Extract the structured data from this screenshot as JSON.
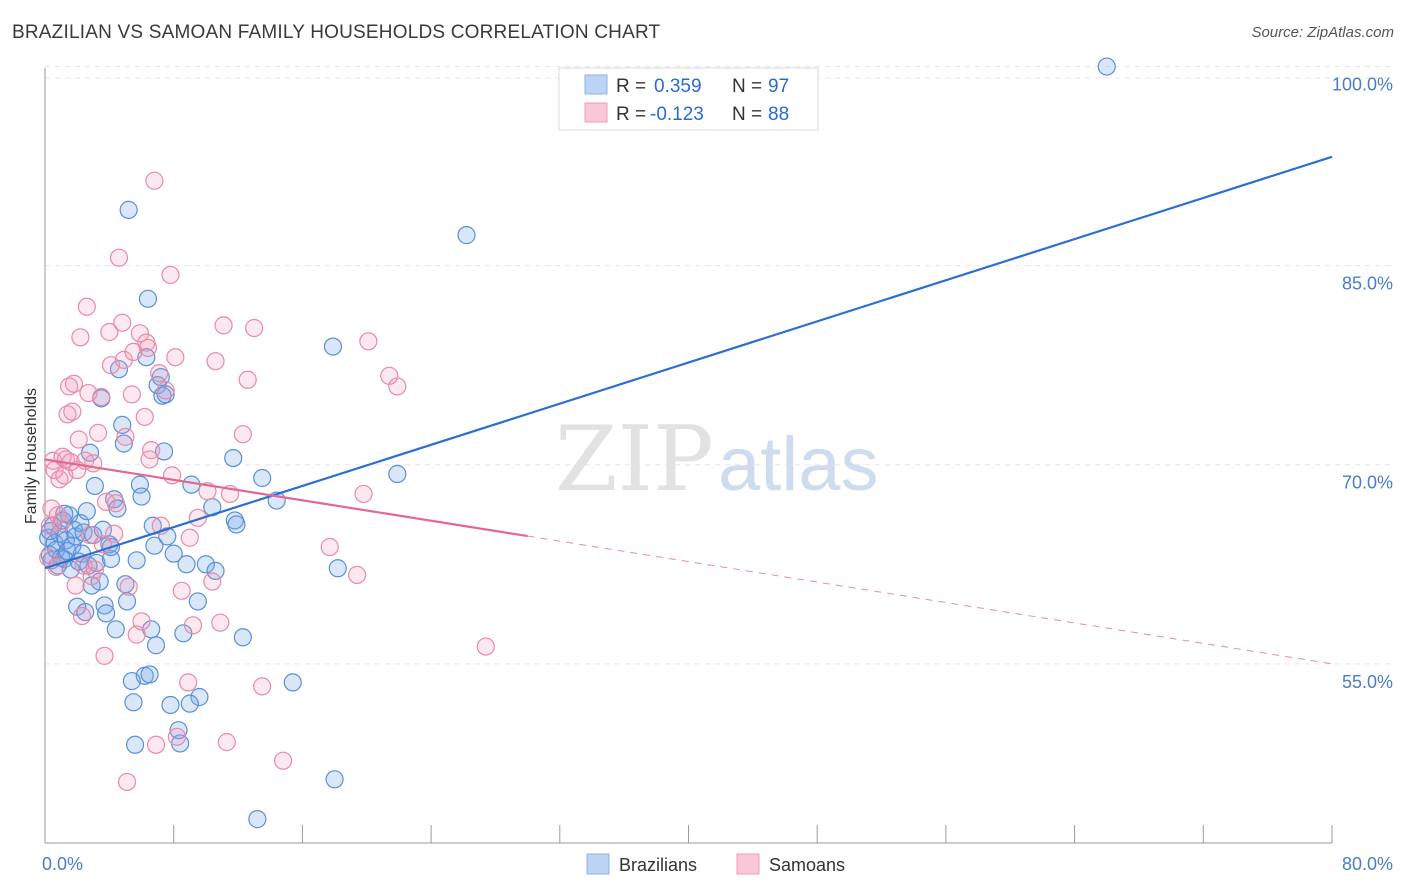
{
  "header": {
    "title": "BRAZILIAN VS SAMOAN FAMILY HOUSEHOLDS CORRELATION CHART",
    "source": "Source: ZipAtlas.com"
  },
  "watermark": {
    "zip": "ZIP",
    "atlas": "atlas"
  },
  "legend": {
    "r_label": "R =",
    "n_label": "N =",
    "series": [
      {
        "r": "0.359",
        "n": "97",
        "color": "#4a85d6"
      },
      {
        "r": "-0.123",
        "n": "88",
        "color": "#e8779a"
      }
    ]
  },
  "bottom_legend": [
    "Brazilians",
    "Samoans"
  ],
  "chart_data": {
    "type": "scatter",
    "title": "BRAZILIAN VS SAMOAN FAMILY HOUSEHOLDS CORRELATION CHART",
    "xlabel": "",
    "ylabel": "Family Households",
    "xlim": [
      0,
      80
    ],
    "ylim": [
      41.5,
      102
    ],
    "x_tick_labels": [
      "0.0%",
      "80.0%"
    ],
    "y_ticks": [
      55,
      70,
      85,
      100
    ],
    "y_tick_labels": [
      "55.0%",
      "70.0%",
      "85.0%",
      "100.0%"
    ],
    "grid": true,
    "series": [
      {
        "name": "Brazilians",
        "color": "#4a85d6",
        "r": 0.359,
        "n": 97,
        "trend": {
          "x": [
            0,
            80
          ],
          "y": [
            62.2,
            93.2
          ],
          "dashed_from": null
        },
        "points": [
          [
            0.2,
            64.5
          ],
          [
            0.3,
            63.2
          ],
          [
            0.4,
            62.8
          ],
          [
            0.5,
            65.4
          ],
          [
            0.6,
            64.1
          ],
          [
            0.7,
            63.6
          ],
          [
            0.8,
            62.4
          ],
          [
            0.9,
            64.8
          ],
          [
            1.0,
            63.0
          ],
          [
            1.1,
            65.8
          ],
          [
            1.2,
            62.9
          ],
          [
            1.3,
            64.3
          ],
          [
            1.4,
            63.5
          ],
          [
            1.5,
            66.2
          ],
          [
            1.6,
            62.1
          ],
          [
            1.7,
            63.9
          ],
          [
            1.8,
            65.1
          ],
          [
            1.9,
            64.6
          ],
          [
            2.0,
            59.3
          ],
          [
            2.1,
            62.7
          ],
          [
            2.2,
            65.6
          ],
          [
            2.3,
            63.3
          ],
          [
            2.4,
            64.9
          ],
          [
            2.5,
            58.9
          ],
          [
            2.6,
            66.5
          ],
          [
            2.7,
            62.4
          ],
          [
            2.8,
            70.9
          ],
          [
            3.0,
            64.7
          ],
          [
            3.1,
            68.4
          ],
          [
            3.2,
            62.6
          ],
          [
            3.4,
            61.2
          ],
          [
            3.5,
            75.0
          ],
          [
            3.6,
            65.1
          ],
          [
            3.7,
            59.4
          ],
          [
            3.8,
            58.8
          ],
          [
            4.0,
            64.0
          ],
          [
            4.1,
            62.9
          ],
          [
            4.3,
            67.4
          ],
          [
            4.4,
            57.6
          ],
          [
            4.5,
            66.7
          ],
          [
            4.6,
            77.2
          ],
          [
            4.8,
            73.0
          ],
          [
            4.9,
            71.6
          ],
          [
            5.0,
            61.0
          ],
          [
            5.1,
            59.7
          ],
          [
            5.2,
            89.2
          ],
          [
            5.4,
            53.7
          ],
          [
            5.5,
            52.1
          ],
          [
            5.6,
            48.9
          ],
          [
            5.7,
            62.8
          ],
          [
            5.9,
            68.5
          ],
          [
            6.0,
            67.6
          ],
          [
            6.2,
            54.1
          ],
          [
            6.3,
            78.1
          ],
          [
            6.4,
            82.5
          ],
          [
            6.5,
            54.2
          ],
          [
            6.6,
            57.6
          ],
          [
            6.7,
            65.4
          ],
          [
            6.8,
            63.9
          ],
          [
            6.9,
            56.4
          ],
          [
            7.0,
            76.0
          ],
          [
            7.2,
            76.6
          ],
          [
            7.3,
            75.2
          ],
          [
            7.4,
            71.0
          ],
          [
            7.5,
            75.3
          ],
          [
            7.6,
            64.6
          ],
          [
            7.8,
            51.9
          ],
          [
            8.0,
            63.3
          ],
          [
            8.3,
            50.0
          ],
          [
            8.4,
            49.0
          ],
          [
            8.6,
            57.3
          ],
          [
            8.8,
            62.5
          ],
          [
            9.1,
            68.5
          ],
          [
            9.5,
            59.7
          ],
          [
            9.6,
            52.5
          ],
          [
            10.0,
            62.5
          ],
          [
            10.4,
            66.8
          ],
          [
            10.6,
            62.0
          ],
          [
            11.7,
            70.5
          ],
          [
            11.8,
            65.8
          ],
          [
            11.9,
            65.5
          ],
          [
            12.3,
            57.0
          ],
          [
            13.2,
            43.3
          ],
          [
            13.5,
            69.0
          ],
          [
            14.4,
            67.3
          ],
          [
            15.4,
            53.6
          ],
          [
            17.9,
            78.9
          ],
          [
            18.2,
            62.2
          ],
          [
            18.0,
            46.3
          ],
          [
            21.9,
            69.3
          ],
          [
            26.2,
            87.3
          ],
          [
            66.0,
            100.0
          ],
          [
            0.3,
            65.0
          ],
          [
            1.2,
            66.3
          ],
          [
            2.9,
            60.9
          ],
          [
            4.1,
            63.8
          ],
          [
            9.0,
            52.0
          ]
        ]
      },
      {
        "name": "Samoans",
        "color": "#e8779a",
        "r": -0.123,
        "n": 88,
        "trend": {
          "x": [
            0,
            80
          ],
          "y": [
            70.4,
            55.0
          ],
          "dashed_from": 30
        },
        "points": [
          [
            0.2,
            63.0
          ],
          [
            0.3,
            65.4
          ],
          [
            0.4,
            66.7
          ],
          [
            0.5,
            70.3
          ],
          [
            0.6,
            69.6
          ],
          [
            0.7,
            62.3
          ],
          [
            0.8,
            66.2
          ],
          [
            0.9,
            68.9
          ],
          [
            1.0,
            65.6
          ],
          [
            1.1,
            70.6
          ],
          [
            1.2,
            69.2
          ],
          [
            1.3,
            70.4
          ],
          [
            1.4,
            73.8
          ],
          [
            1.5,
            75.9
          ],
          [
            1.6,
            70.2
          ],
          [
            1.7,
            74.0
          ],
          [
            1.8,
            76.1
          ],
          [
            1.9,
            60.9
          ],
          [
            2.0,
            69.6
          ],
          [
            2.1,
            71.9
          ],
          [
            2.2,
            79.6
          ],
          [
            2.3,
            58.6
          ],
          [
            2.4,
            62.4
          ],
          [
            2.5,
            70.3
          ],
          [
            2.6,
            81.9
          ],
          [
            2.7,
            75.4
          ],
          [
            2.8,
            64.7
          ],
          [
            2.9,
            61.6
          ],
          [
            3.0,
            70.1
          ],
          [
            3.1,
            62.1
          ],
          [
            3.3,
            72.4
          ],
          [
            3.5,
            75.1
          ],
          [
            3.6,
            64.0
          ],
          [
            3.7,
            55.6
          ],
          [
            3.8,
            67.2
          ],
          [
            4.0,
            80.0
          ],
          [
            4.1,
            77.5
          ],
          [
            4.3,
            64.8
          ],
          [
            4.4,
            67.1
          ],
          [
            4.6,
            85.6
          ],
          [
            4.8,
            80.7
          ],
          [
            4.9,
            77.9
          ],
          [
            5.0,
            72.1
          ],
          [
            5.1,
            46.1
          ],
          [
            5.2,
            60.8
          ],
          [
            5.4,
            75.3
          ],
          [
            5.5,
            78.5
          ],
          [
            5.7,
            57.2
          ],
          [
            5.9,
            79.9
          ],
          [
            6.0,
            58.2
          ],
          [
            6.2,
            73.6
          ],
          [
            6.3,
            79.2
          ],
          [
            6.4,
            78.8
          ],
          [
            6.5,
            70.4
          ],
          [
            6.6,
            71.1
          ],
          [
            6.8,
            91.4
          ],
          [
            6.9,
            48.9
          ],
          [
            7.1,
            76.9
          ],
          [
            7.2,
            65.4
          ],
          [
            7.5,
            75.6
          ],
          [
            7.8,
            84.3
          ],
          [
            7.9,
            69.2
          ],
          [
            8.1,
            78.1
          ],
          [
            8.2,
            49.5
          ],
          [
            8.5,
            60.5
          ],
          [
            8.9,
            53.6
          ],
          [
            9.0,
            64.5
          ],
          [
            9.2,
            57.9
          ],
          [
            9.5,
            66.0
          ],
          [
            10.1,
            68.0
          ],
          [
            10.4,
            61.2
          ],
          [
            10.6,
            77.8
          ],
          [
            10.9,
            58.1
          ],
          [
            11.1,
            80.5
          ],
          [
            11.3,
            49.1
          ],
          [
            11.5,
            67.8
          ],
          [
            12.3,
            72.3
          ],
          [
            12.6,
            76.4
          ],
          [
            13.0,
            80.3
          ],
          [
            13.5,
            53.3
          ],
          [
            14.8,
            47.7
          ],
          [
            17.7,
            63.8
          ],
          [
            19.4,
            61.7
          ],
          [
            19.8,
            67.8
          ],
          [
            20.1,
            79.3
          ],
          [
            21.4,
            76.7
          ],
          [
            21.9,
            75.9
          ],
          [
            27.4,
            56.3
          ]
        ]
      }
    ]
  }
}
